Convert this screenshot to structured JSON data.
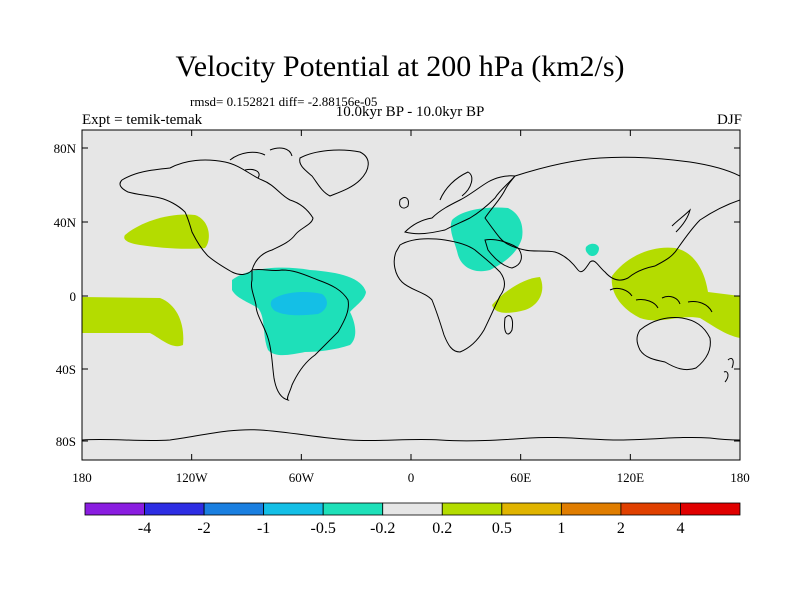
{
  "figure": {
    "title": "Velocity Potential at 200 hPa (km2/s)",
    "stats": "rmsd= 0.152821 diff= -2.88156e-05",
    "subtitle": "10.0kyr BP - 10.0kyr BP",
    "experiment": "Expt = temik-temak",
    "season": "DJF"
  },
  "axes": {
    "lat_labels": [
      "80N",
      "40N",
      "0",
      "40S",
      "80S"
    ],
    "lon_labels": [
      "180",
      "120W",
      "60W",
      "0",
      "60E",
      "120E",
      "180"
    ]
  },
  "colorbar": {
    "colors": [
      "#8a1de0",
      "#2d2de3",
      "#1a7fe0",
      "#14bfe6",
      "#1ee0b9",
      "#e6e6e6",
      "#b4dc00",
      "#e0b400",
      "#e07d00",
      "#e04000",
      "#e00000"
    ],
    "labels": [
      "-4",
      "-2",
      "-1",
      "-0.5",
      "-0.2",
      "0.2",
      "0.5",
      "1",
      "2",
      "4"
    ]
  },
  "map_colors": {
    "background": "#e6e6e6",
    "positive": "#b4dc00",
    "negative": "#1ee0b9",
    "negative_strong": "#14bfe6",
    "coast": "#000000"
  }
}
